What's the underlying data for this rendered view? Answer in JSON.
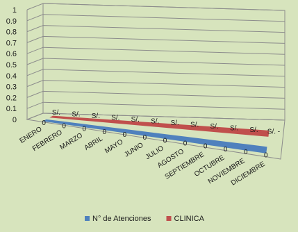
{
  "chart_data": {
    "type": "line",
    "title": "",
    "xlabel": "",
    "ylabel": "",
    "ylim": [
      0,
      1
    ],
    "y_ticks": [
      "0",
      "0.1",
      "0.2",
      "0.3",
      "0.4",
      "0.5",
      "0.6",
      "0.7",
      "0.8",
      "0.9",
      "1"
    ],
    "grid": true,
    "legend_position": "bottom",
    "categories": [
      "ENERO",
      "FEBRERO",
      "MARZO",
      "ABRIL",
      "MAYO",
      "JUNIO",
      "JULIO",
      "AGOSTO",
      "SEPTIEMBRE",
      "OCTUBRE",
      "NOVIEMBRE",
      "DICIEMBRE"
    ],
    "series": [
      {
        "name": "N° de Atenciones",
        "color": "#4f81bd",
        "values": [
          0,
          0,
          0,
          0,
          0,
          0,
          0,
          0,
          0,
          0,
          0,
          0
        ],
        "labels": [
          "0",
          "0",
          "0",
          "0",
          "0",
          "0",
          "0",
          "0",
          "0",
          "0",
          "0",
          "0"
        ]
      },
      {
        "name": "CLINICA",
        "color": "#c0504d",
        "values": [
          0,
          0,
          0,
          0,
          0,
          0,
          0,
          0,
          0,
          0,
          0,
          0
        ],
        "labels": [
          "S/.",
          "S/.",
          "S/.",
          "S/.",
          "S/.",
          "S/.",
          "S/.",
          "S/.",
          "S/.",
          "S/.",
          "S/.",
          "S/. -"
        ]
      }
    ]
  }
}
